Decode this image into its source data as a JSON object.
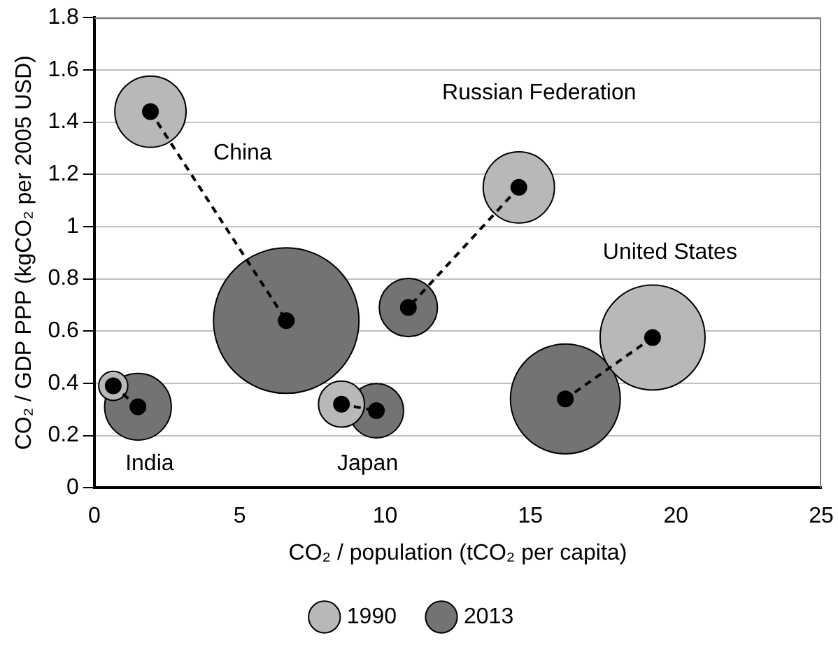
{
  "chart_data": {
    "type": "bubble",
    "xlabel": "CO₂ / population (tCO₂ per capita)",
    "ylabel": "CO₂ / GDP PPP (kgCO₂ per 2005 USD)",
    "xlim": [
      0,
      25
    ],
    "xticks": [
      0,
      5,
      10,
      15,
      20,
      25
    ],
    "ylim": [
      0,
      1.8
    ],
    "yticks": [
      0,
      0.2,
      0.4,
      0.6,
      0.8,
      1,
      1.2,
      1.4,
      1.6,
      1.8
    ],
    "grid": "y",
    "legend": "bottom",
    "series": [
      {
        "type": "line",
        "color": "#000000",
        "line_style": "dashed",
        "marker": "circle",
        "x": [
          1.93,
          6.6
        ],
        "values": [
          1.44,
          0.64
        ]
      },
      {
        "type": "line",
        "color": "#000000",
        "line_style": "dashed",
        "marker": "circle",
        "x": [
          0.65,
          1.5
        ],
        "values": [
          0.39,
          0.31
        ]
      },
      {
        "type": "line",
        "color": "#000000",
        "line_style": "dashed",
        "marker": "circle",
        "x": [
          8.5,
          9.7
        ],
        "values": [
          0.32,
          0.295
        ]
      },
      {
        "type": "line",
        "color": "#000000",
        "line_style": "dashed",
        "marker": "circle",
        "x": [
          14.6,
          10.8
        ],
        "values": [
          1.15,
          0.69
        ]
      },
      {
        "type": "line",
        "color": "#000000",
        "line_style": "dashed",
        "marker": "circle",
        "x": [
          19.2,
          16.2
        ],
        "values": [
          0.575,
          0.34
        ]
      },
      {
        "name": "1990",
        "color": "#b8b8b8",
        "x": [
          1.93,
          0.65,
          8.5,
          14.6,
          19.2
        ],
        "values": [
          1.44,
          0.39,
          0.32,
          1.15,
          0.575
        ],
        "sizes": [
          0.24,
          0.04,
          0.1,
          0.24,
          0.52
        ]
      },
      {
        "name": "2013",
        "color": "#737373",
        "x": [
          6.6,
          1.5,
          9.7,
          10.8,
          16.2
        ],
        "values": [
          0.64,
          0.31,
          0.295,
          0.69,
          0.34
        ],
        "sizes": [
          1,
          0.21,
          0.14,
          0.16,
          0.57
        ]
      }
    ],
    "annotations": [
      "China",
      "India",
      "Japan",
      "Russian Federation",
      "United States"
    ]
  }
}
